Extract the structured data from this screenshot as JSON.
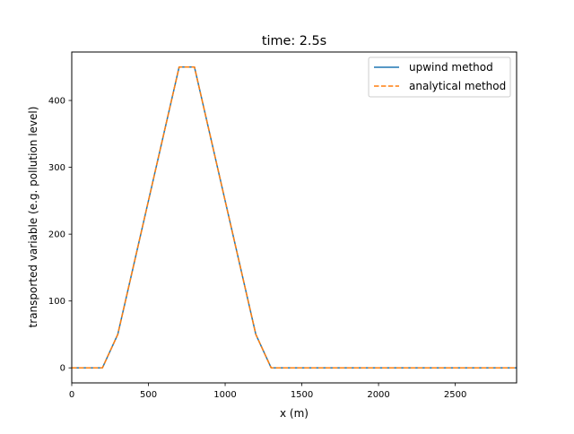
{
  "chart_data": {
    "type": "line",
    "title": "time: 2.5s",
    "xlabel": "x (m)",
    "ylabel": "transported variable (e.g. pollution level)",
    "xlim": [
      0,
      2900
    ],
    "ylim": [
      -22.5,
      472.5
    ],
    "xticks": [
      0,
      500,
      1000,
      1500,
      2000,
      2500
    ],
    "yticks": [
      0,
      100,
      200,
      300,
      400
    ],
    "grid": false,
    "legend_position": "top-right",
    "series": [
      {
        "name": "upwind method",
        "color": "#1f77b4",
        "dash": "solid",
        "x": [
          0,
          100,
          200,
          300,
          400,
          500,
          600,
          700,
          800,
          900,
          1000,
          1100,
          1200,
          1300,
          1400,
          1500,
          1600,
          1700,
          1800,
          1900,
          2000,
          2100,
          2200,
          2300,
          2400,
          2500,
          2600,
          2700,
          2800,
          2900
        ],
        "y": [
          0,
          0,
          0,
          50,
          150,
          250,
          350,
          450,
          450,
          350,
          250,
          150,
          50,
          0,
          0,
          0,
          0,
          0,
          0,
          0,
          0,
          0,
          0,
          0,
          0,
          0,
          0,
          0,
          0,
          0
        ]
      },
      {
        "name": "analytical method",
        "color": "#ff7f0e",
        "dash": "dashed",
        "x": [
          0,
          100,
          200,
          300,
          400,
          500,
          600,
          700,
          800,
          900,
          1000,
          1100,
          1200,
          1300,
          1400,
          1500,
          1600,
          1700,
          1800,
          1900,
          2000,
          2100,
          2200,
          2300,
          2400,
          2500,
          2600,
          2700,
          2800,
          2900
        ],
        "y": [
          0,
          0,
          0,
          50,
          150,
          250,
          350,
          450,
          450,
          350,
          250,
          150,
          50,
          0,
          0,
          0,
          0,
          0,
          0,
          0,
          0,
          0,
          0,
          0,
          0,
          0,
          0,
          0,
          0,
          0
        ]
      }
    ]
  }
}
